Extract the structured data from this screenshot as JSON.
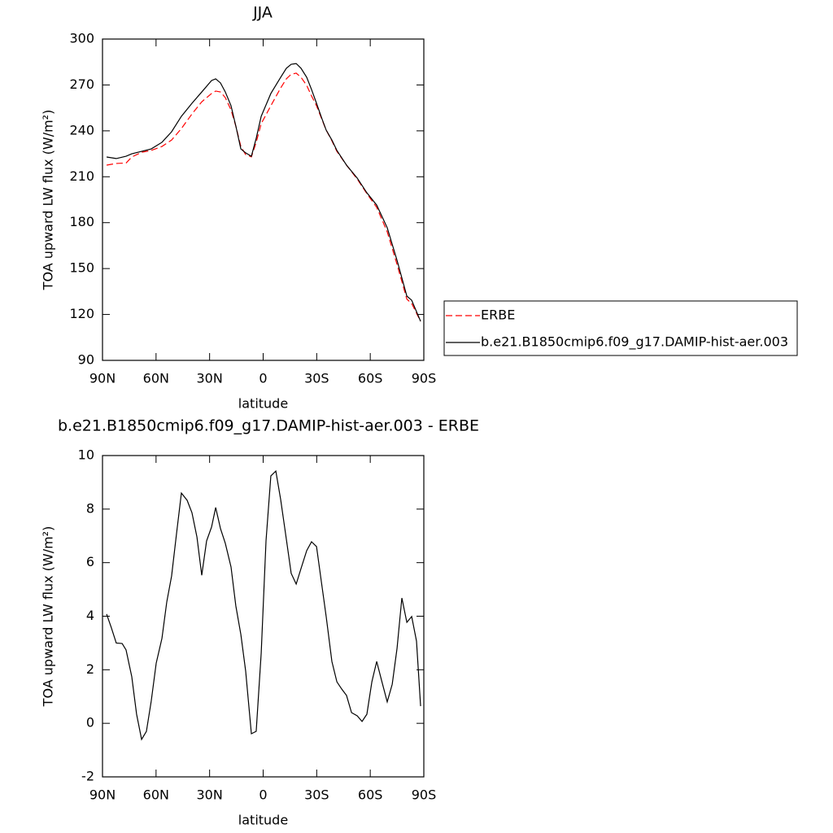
{
  "chart_data": [
    {
      "type": "line",
      "title": "JJA",
      "xlabel": "latitude",
      "ylabel": "TOA upward LW flux (W/m²)",
      "x": [
        87.7,
        82.3,
        76.8,
        73.6,
        68.1,
        62.7,
        56.7,
        51.3,
        45.8,
        39.9,
        34.4,
        28.9,
        26.6,
        23.9,
        21.2,
        18,
        15.3,
        12.5,
        9.8,
        6.6,
        3.9,
        1.1,
        -4.3,
        -9.8,
        -13,
        -15.7,
        -18.5,
        -21.2,
        -24.4,
        -27.1,
        -29.9,
        -32.6,
        -35.3,
        -38.5,
        -41.3,
        -46.7,
        -52.7,
        -58.1,
        -63.6,
        -69.5,
        -75,
        -80.5,
        -83.2,
        -88.2
      ],
      "series": [
        {
          "name": "ERBE",
          "color": "#ff0000",
          "linestyle": "dashed",
          "values": [
            217.6,
            218.7,
            219,
            222.9,
            226,
            227.2,
            229.8,
            234,
            241.5,
            251,
            259,
            264.4,
            266,
            265.4,
            261.7,
            253.7,
            243,
            229.8,
            224.5,
            223,
            232.5,
            244.7,
            256.4,
            268,
            274,
            277,
            277.7,
            275,
            269.7,
            262.8,
            256.4,
            248.4,
            240.5,
            233.5,
            226.6,
            217.6,
            208.5,
            199,
            190,
            174,
            152.7,
            130,
            127.2,
            115.5
          ]
        },
        {
          "name": "b.e21.B1850cmip6.f09_g17.DAMIP-hist-aer.003",
          "color": "#000000",
          "linestyle": "solid",
          "values": [
            222.9,
            221.9,
            223.4,
            225,
            226.6,
            228.2,
            232.5,
            239.4,
            249.5,
            258,
            265.4,
            272.9,
            274,
            271.3,
            265.4,
            256.4,
            243.1,
            228.2,
            225.6,
            223.4,
            235.1,
            249.5,
            264.4,
            275,
            280.9,
            283.5,
            284,
            280.9,
            275,
            267,
            258,
            249,
            240.5,
            234,
            227.2,
            217.6,
            209.1,
            199.5,
            191.5,
            176.7,
            155.4,
            132,
            129.3,
            115.5
          ]
        }
      ],
      "xlim": [
        90,
        -90
      ],
      "ylim": [
        90,
        300
      ],
      "xticks": [
        {
          "value": 90,
          "label": "90N"
        },
        {
          "value": 60,
          "label": "60N"
        },
        {
          "value": 30,
          "label": "30N"
        },
        0,
        {
          "value": -30,
          "label": "30S"
        },
        {
          "value": -60,
          "label": "60S"
        },
        {
          "value": -90,
          "label": "90S"
        }
      ],
      "yticks": [
        90,
        120,
        150,
        180,
        210,
        240,
        270,
        300
      ],
      "legend": "outside-right"
    },
    {
      "type": "line",
      "title": "b.e21.B1850cmip6.f09_g17.DAMIP-hist-aer.003 - ERBE",
      "xlabel": "latitude",
      "ylabel": "TOA upward LW flux (W/m²)",
      "x": [
        87.7,
        85,
        82.3,
        79,
        76.8,
        73.6,
        70.9,
        68.1,
        65.4,
        62.7,
        59.9,
        56.7,
        54,
        51.3,
        48.5,
        45.8,
        42.6,
        39.9,
        37.1,
        34.4,
        31.7,
        28.9,
        26.6,
        23.9,
        21.2,
        18,
        15.3,
        12.5,
        9.8,
        6.6,
        3.9,
        1.1,
        -1.6,
        -4.3,
        -7.1,
        -9.8,
        -13,
        -15.7,
        -18.5,
        -21.2,
        -24.4,
        -27.1,
        -29.9,
        -32.6,
        -35.3,
        -38.5,
        -41.3,
        -44,
        -46.7,
        -49.5,
        -52.7,
        -55.4,
        -58.1,
        -60.9,
        -63.6,
        -66.3,
        -69.5,
        -72.3,
        -75,
        -77.7,
        -80.5,
        -83.2,
        -85.9,
        -88.2
      ],
      "series": [
        {
          "name": null,
          "color": "#000000",
          "linestyle": "solid",
          "values": [
            4.08,
            3.56,
            3.0,
            2.98,
            2.74,
            1.74,
            0.34,
            -0.6,
            -0.3,
            0.83,
            2.25,
            3.17,
            4.53,
            5.5,
            7.1,
            8.6,
            8.33,
            7.87,
            6.96,
            5.53,
            6.81,
            7.33,
            8.06,
            7.27,
            6.72,
            5.84,
            4.38,
            3.32,
            1.95,
            -0.39,
            -0.3,
            2.62,
            6.81,
            9.24,
            9.42,
            8.36,
            6.87,
            5.6,
            5.2,
            5.78,
            6.45,
            6.78,
            6.6,
            5.29,
            3.99,
            2.31,
            1.55,
            1.28,
            1.04,
            0.4,
            0.28,
            0.07,
            0.34,
            1.55,
            2.31,
            1.61,
            0.8,
            1.46,
            2.8,
            4.68,
            3.77,
            3.99,
            3.07,
            0.64
          ]
        }
      ],
      "xlim": [
        90,
        -90
      ],
      "ylim": [
        -2,
        10
      ],
      "xticks": [
        {
          "value": 90,
          "label": "90N"
        },
        {
          "value": 60,
          "label": "60N"
        },
        {
          "value": 30,
          "label": "30N"
        },
        0,
        {
          "value": -30,
          "label": "30S"
        },
        {
          "value": -60,
          "label": "60S"
        },
        {
          "value": -90,
          "label": "90S"
        }
      ],
      "yticks": [
        -2,
        0,
        2,
        4,
        6,
        8,
        10
      ]
    }
  ]
}
